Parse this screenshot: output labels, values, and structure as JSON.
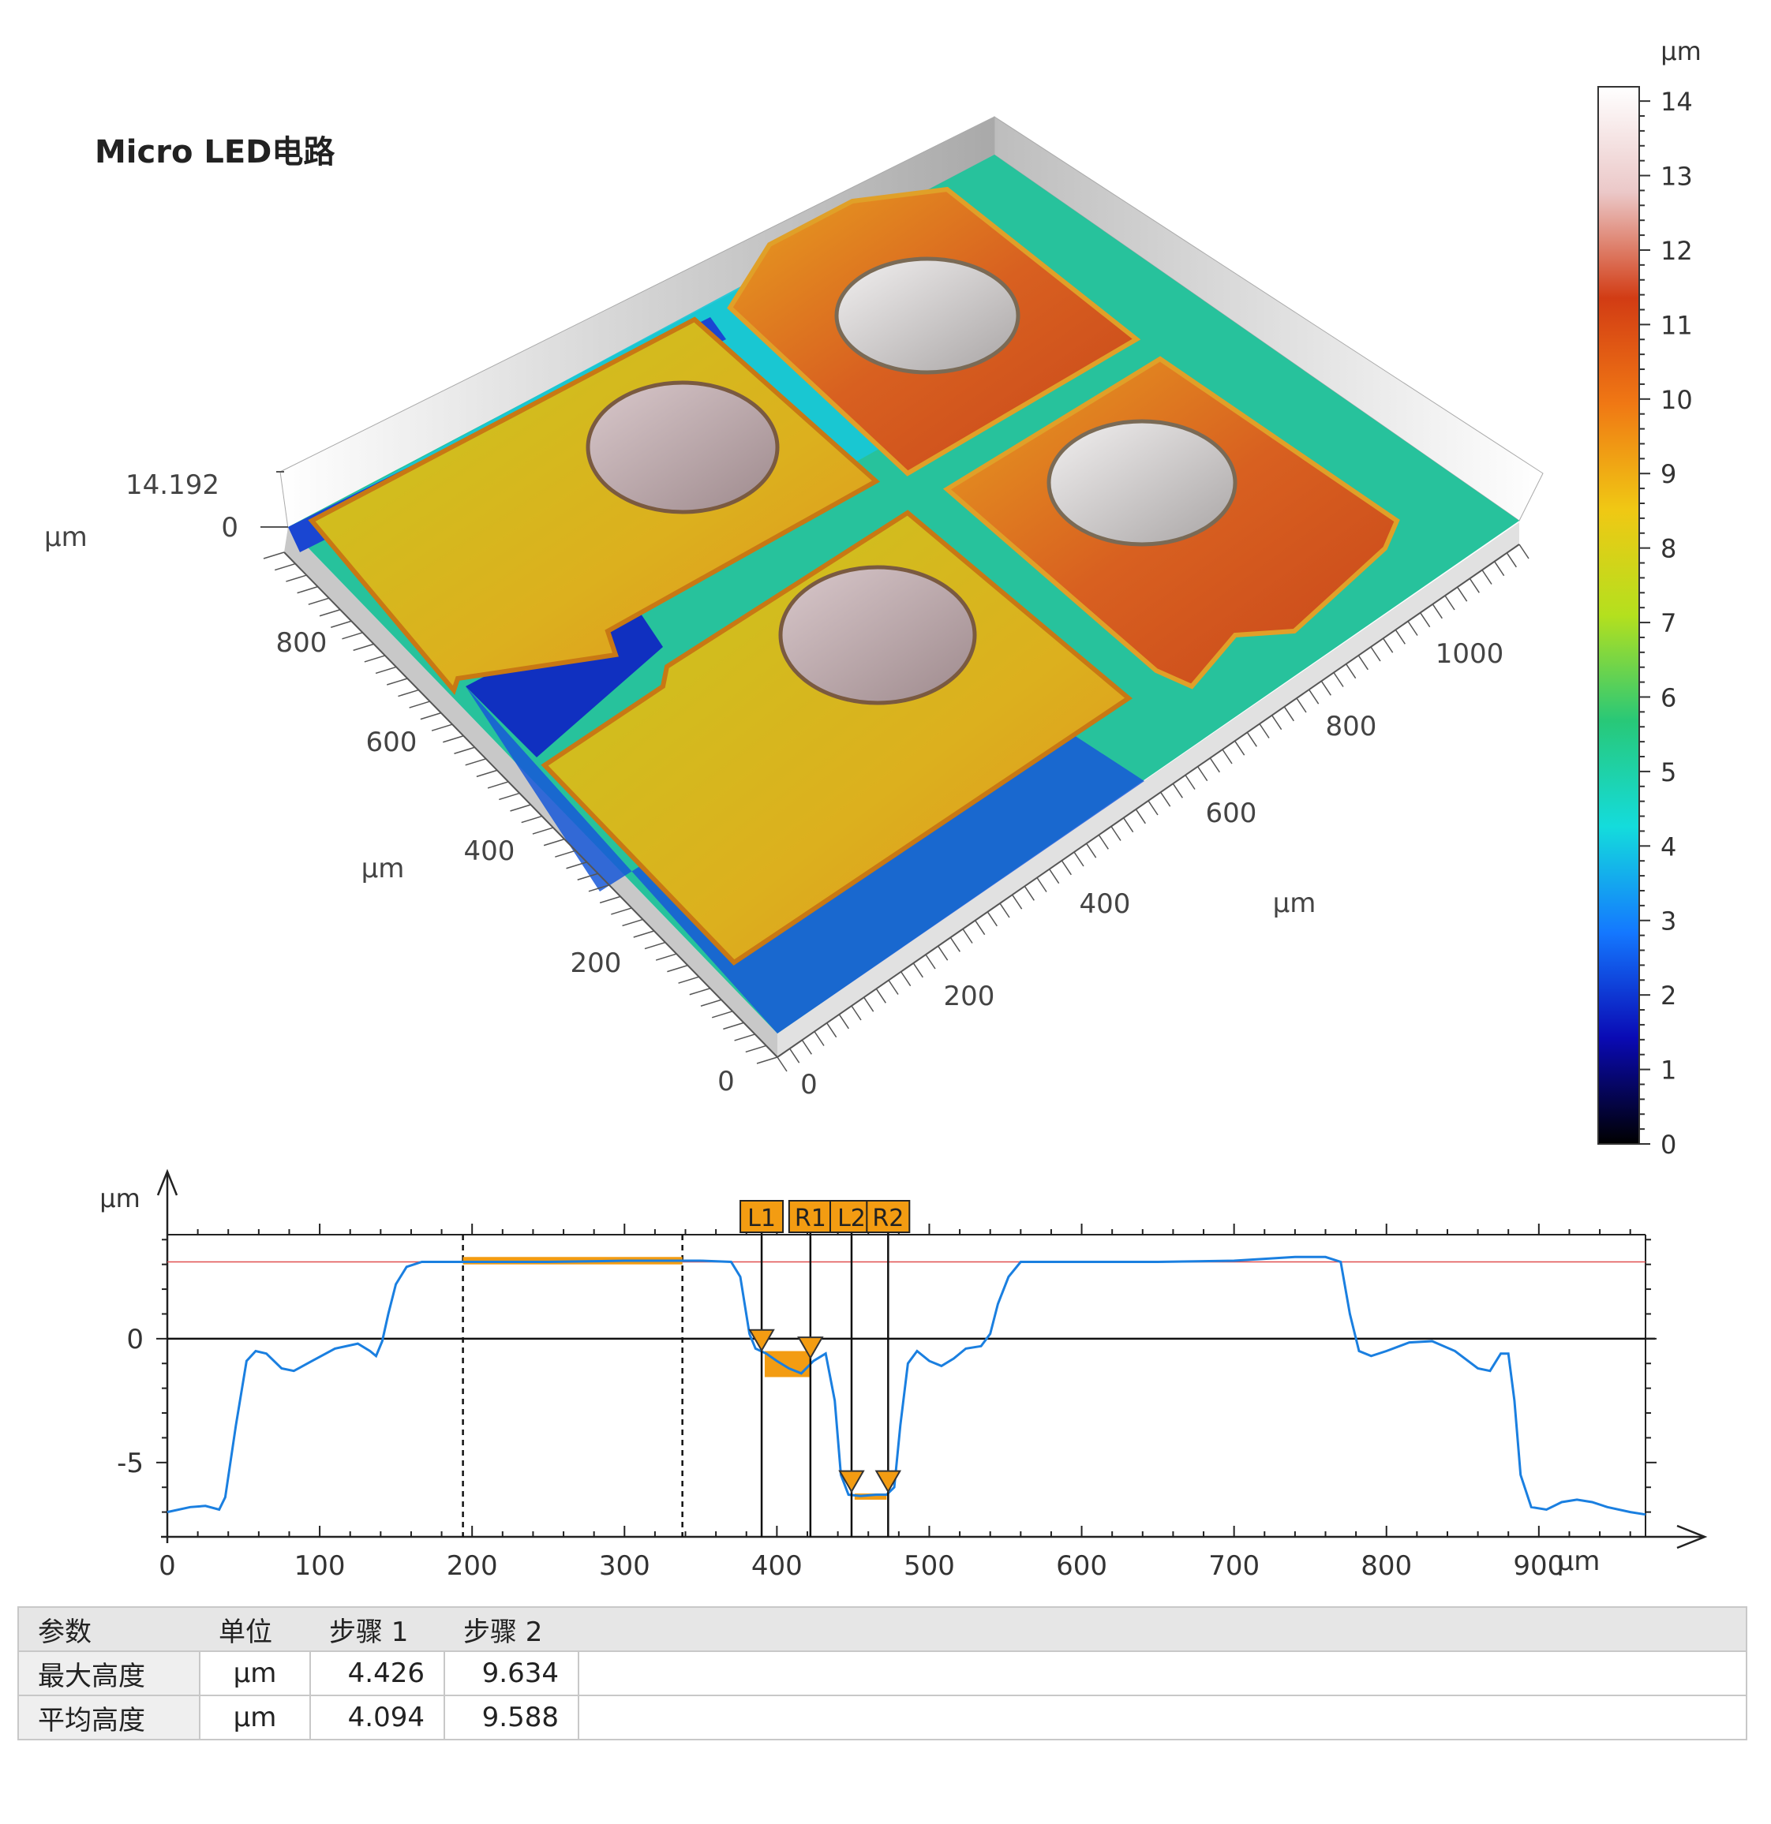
{
  "title": "Micro LED电路",
  "surface3d": {
    "z_label": "μm",
    "z_max_label": "14.192",
    "z_min_label": "0",
    "y_axis": {
      "label": "μm",
      "ticks": [
        "0",
        "200",
        "400",
        "600",
        "800"
      ]
    },
    "x_axis": {
      "label": "μm",
      "ticks": [
        "0",
        "200",
        "400",
        "600",
        "800",
        "1000"
      ]
    },
    "colors": {
      "low": "#1432c8",
      "mid": "#e0c21c",
      "high": "#d2541e",
      "pad": "#b9a5a8",
      "floor": "#26c19a",
      "wall": "#dcdcdc"
    }
  },
  "colorbar": {
    "unit": "μm",
    "range": [
      0,
      14
    ],
    "ticks": [
      "0",
      "1",
      "2",
      "3",
      "4",
      "5",
      "6",
      "7",
      "8",
      "9",
      "10",
      "11",
      "12",
      "13",
      "14"
    ],
    "stops": [
      "#000000",
      "#0a0ab4",
      "#1478ff",
      "#14dcdc",
      "#28c878",
      "#b4e01e",
      "#f0c814",
      "#f07814",
      "#d23c14",
      "#ebc8c8",
      "#ffffff"
    ]
  },
  "chart_data": {
    "type": "line",
    "xlabel": "μm",
    "ylabel": "μm",
    "xlim": [
      0,
      970
    ],
    "ylim": [
      -8,
      4.2
    ],
    "x_ticks": [
      "0",
      "100",
      "200",
      "300",
      "400",
      "500",
      "600",
      "700",
      "800",
      "900"
    ],
    "y_ticks": [
      "0",
      "-5"
    ],
    "reference_line": 3.1,
    "series": [
      {
        "color": "#1a7fe0",
        "points": [
          [
            0,
            -7.0
          ],
          [
            15,
            -6.8
          ],
          [
            25,
            -6.75
          ],
          [
            34,
            -6.9
          ],
          [
            38,
            -6.4
          ],
          [
            45,
            -3.5
          ],
          [
            52,
            -0.9
          ],
          [
            58,
            -0.5
          ],
          [
            65,
            -0.6
          ],
          [
            75,
            -1.2
          ],
          [
            83,
            -1.3
          ],
          [
            95,
            -0.9
          ],
          [
            110,
            -0.4
          ],
          [
            125,
            -0.2
          ],
          [
            133,
            -0.5
          ],
          [
            137,
            -0.7
          ],
          [
            141,
            -0.1
          ],
          [
            145,
            1.0
          ],
          [
            150,
            2.2
          ],
          [
            157,
            2.9
          ],
          [
            167,
            3.1
          ],
          [
            200,
            3.1
          ],
          [
            250,
            3.1
          ],
          [
            300,
            3.15
          ],
          [
            350,
            3.15
          ],
          [
            370,
            3.1
          ],
          [
            376,
            2.5
          ],
          [
            382,
            0.2
          ],
          [
            386,
            -0.4
          ],
          [
            393,
            -0.6
          ],
          [
            400,
            -0.9
          ],
          [
            408,
            -1.2
          ],
          [
            416,
            -1.4
          ],
          [
            424,
            -0.9
          ],
          [
            432,
            -0.6
          ],
          [
            438,
            -2.5
          ],
          [
            442,
            -5.5
          ],
          [
            447,
            -6.3
          ],
          [
            455,
            -6.35
          ],
          [
            465,
            -6.3
          ],
          [
            472,
            -6.3
          ],
          [
            477,
            -6.0
          ],
          [
            481,
            -3.5
          ],
          [
            486,
            -1.0
          ],
          [
            492,
            -0.5
          ],
          [
            500,
            -0.9
          ],
          [
            508,
            -1.1
          ],
          [
            516,
            -0.8
          ],
          [
            524,
            -0.4
          ],
          [
            534,
            -0.3
          ],
          [
            540,
            0.2
          ],
          [
            545,
            1.4
          ],
          [
            552,
            2.5
          ],
          [
            560,
            3.1
          ],
          [
            600,
            3.1
          ],
          [
            650,
            3.1
          ],
          [
            700,
            3.15
          ],
          [
            740,
            3.3
          ],
          [
            760,
            3.3
          ],
          [
            770,
            3.1
          ],
          [
            776,
            1.0
          ],
          [
            782,
            -0.5
          ],
          [
            790,
            -0.7
          ],
          [
            800,
            -0.5
          ],
          [
            815,
            -0.15
          ],
          [
            830,
            -0.1
          ],
          [
            845,
            -0.5
          ],
          [
            860,
            -1.2
          ],
          [
            868,
            -1.3
          ],
          [
            875,
            -0.6
          ],
          [
            880,
            -0.6
          ],
          [
            884,
            -2.5
          ],
          [
            888,
            -5.5
          ],
          [
            895,
            -6.8
          ],
          [
            905,
            -6.9
          ],
          [
            915,
            -6.6
          ],
          [
            925,
            -6.5
          ],
          [
            935,
            -6.6
          ],
          [
            945,
            -6.8
          ],
          [
            960,
            -7.0
          ],
          [
            970,
            -7.1
          ]
        ]
      }
    ],
    "region": {
      "x": [
        194,
        338
      ],
      "y": [
        3.0,
        3.3
      ]
    },
    "cursors": [
      {
        "label": "L1",
        "x": 390
      },
      {
        "label": "R1",
        "x": 422
      },
      {
        "label": "L2",
        "x": 449
      },
      {
        "label": "R2",
        "x": 473
      }
    ],
    "step_bands": [
      {
        "x": [
          392,
          422
        ],
        "y": [
          -0.5,
          -1.55
        ]
      },
      {
        "x": [
          451,
          472
        ],
        "y": [
          -6.25,
          -6.5
        ]
      }
    ],
    "accent": "#f39c12"
  },
  "table": {
    "headers": [
      "参数",
      "单位",
      "步骤 1",
      "步骤 2"
    ],
    "rows": [
      [
        "最大高度",
        "μm",
        "4.426",
        "9.634"
      ],
      [
        "平均高度",
        "μm",
        "4.094",
        "9.588"
      ]
    ]
  }
}
